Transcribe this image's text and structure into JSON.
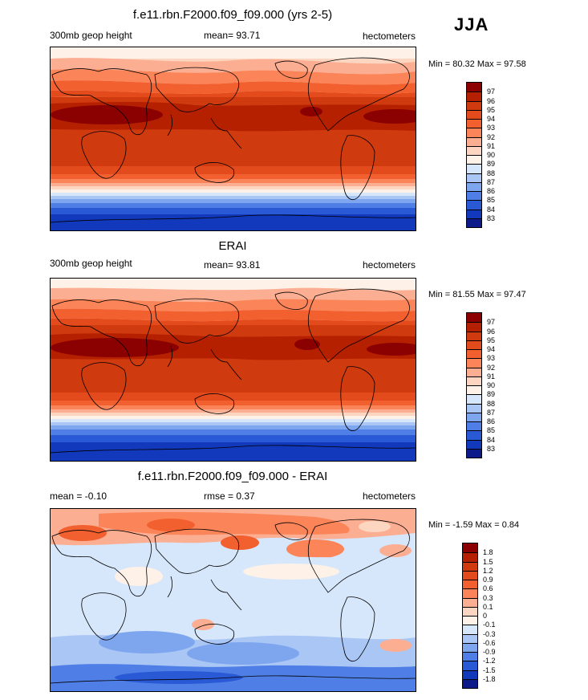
{
  "season": "JJA",
  "panels": [
    {
      "title": "f.e11.rbn.F2000.f09_f09.000 (yrs 2-5)",
      "left_label": "300mb geop height",
      "mid_label": "mean=  93.71",
      "right_label": "hectometers",
      "minmax": "Min =  80.32 Max =  97.58",
      "legend_labels": [
        "97",
        "96",
        "95",
        "94",
        "93",
        "92",
        "91",
        "90",
        "89",
        "88",
        "87",
        "86",
        "85",
        "84",
        "83"
      ],
      "colors": [
        "#8b0000",
        "#b52000",
        "#cf3a0e",
        "#e34a1c",
        "#f36030",
        "#fb8458",
        "#fcae92",
        "#fdd6c2",
        "#fdf1e8",
        "#d6e6fb",
        "#a9c6f5",
        "#7ea6ef",
        "#4f7fe6",
        "#2a59d6",
        "#1238bb",
        "#0d1a8a"
      ]
    },
    {
      "title": "ERAI",
      "left_label": "300mb geop height",
      "mid_label": "mean=  93.81",
      "right_label": "hectometers",
      "minmax": "Min =  81.55 Max =  97.47",
      "legend_labels": [
        "97",
        "96",
        "95",
        "94",
        "93",
        "92",
        "91",
        "90",
        "89",
        "88",
        "87",
        "86",
        "85",
        "84",
        "83"
      ],
      "colors": [
        "#8b0000",
        "#b52000",
        "#cf3a0e",
        "#e34a1c",
        "#f36030",
        "#fb8458",
        "#fcae92",
        "#fdd6c2",
        "#fdf1e8",
        "#d6e6fb",
        "#a9c6f5",
        "#7ea6ef",
        "#4f7fe6",
        "#2a59d6",
        "#1238bb",
        "#0d1a8a"
      ]
    },
    {
      "title": "f.e11.rbn.F2000.f09_f09.000 - ERAI",
      "left_label": "mean =  -0.10",
      "mid_label": "rmse =   0.37",
      "right_label": "hectometers",
      "minmax": "Min =  -1.59 Max =   0.84",
      "legend_labels": [
        "1.8",
        "1.5",
        "1.2",
        "0.9",
        "0.6",
        "0.3",
        "0.1",
        "0",
        "-0.1",
        "-0.3",
        "-0.6",
        "-0.9",
        "-1.2",
        "-1.5",
        "-1.8"
      ],
      "colors": [
        "#8b0000",
        "#b52000",
        "#cf3a0e",
        "#e34a1c",
        "#f36030",
        "#fb8458",
        "#fcae92",
        "#fdd6c2",
        "#fdf1e8",
        "#d6e6fb",
        "#a9c6f5",
        "#7ea6ef",
        "#4f7fe6",
        "#2a59d6",
        "#1238bb",
        "#0d1a8a"
      ]
    }
  ]
}
